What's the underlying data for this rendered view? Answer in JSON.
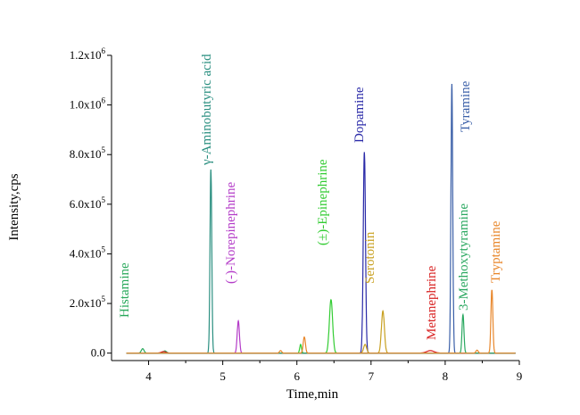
{
  "chart_data": {
    "type": "line",
    "xlabel": "Time,min",
    "ylabel": "Intensity,cps",
    "xlim": [
      3.5,
      9.0
    ],
    "ylim": [
      -30000,
      1200000
    ],
    "x_ticks": [
      4,
      5,
      6,
      7,
      8,
      9
    ],
    "x_tick_labels": [
      "4",
      "5",
      "6",
      "7",
      "8",
      "9"
    ],
    "y_ticks": [
      0,
      200000,
      400000,
      600000,
      800000,
      1000000,
      1200000
    ],
    "y_tick_labels": [
      {
        "mantissa": "0.0",
        "exp": ""
      },
      {
        "mantissa": "2.0x10",
        "exp": "5"
      },
      {
        "mantissa": "4.0x10",
        "exp": "5"
      },
      {
        "mantissa": "6.0x10",
        "exp": "5"
      },
      {
        "mantissa": "8.0x10",
        "exp": "5"
      },
      {
        "mantissa": "1.0x10",
        "exp": "6"
      },
      {
        "mantissa": "1.2x10",
        "exp": "6"
      }
    ],
    "series": [
      {
        "name": "Histamine",
        "color": "#27a85a",
        "peak_x": 3.92,
        "peak_y": 18000,
        "width": 0.018,
        "extra": [
          [
            4.22,
            9000,
            0.02
          ]
        ]
      },
      {
        "name": "γ-Aminobutyric acid",
        "color": "#2a8f80",
        "peak_x": 4.84,
        "peak_y": 740000,
        "width": 0.012,
        "extra": []
      },
      {
        "name": "(-)-Norepinephrine",
        "color": "#b43cc8",
        "peak_x": 5.21,
        "peak_y": 130000,
        "width": 0.015,
        "extra": []
      },
      {
        "name": "(±)-Epinephrine",
        "color": "#33cc33",
        "peak_x": 6.46,
        "peak_y": 215000,
        "width": 0.022,
        "extra": [
          [
            6.05,
            35000,
            0.012
          ]
        ]
      },
      {
        "name": "Dopamine",
        "color": "#2a2aa8",
        "peak_x": 6.91,
        "peak_y": 810000,
        "width": 0.015,
        "extra": []
      },
      {
        "name": "Serotonin",
        "color": "#c8a020",
        "peak_x": 7.16,
        "peak_y": 170000,
        "width": 0.02,
        "extra": [
          [
            6.92,
            35000,
            0.02
          ]
        ]
      },
      {
        "name": "Metanephrine",
        "color": "#d82020",
        "peak_x": 7.8,
        "peak_y": 10000,
        "width": 0.05,
        "extra": [
          [
            4.2,
            6000,
            0.03
          ]
        ]
      },
      {
        "name": "Tyramine",
        "color": "#3a5fa8",
        "peak_x": 8.09,
        "peak_y": 1085000,
        "width": 0.012,
        "extra": []
      },
      {
        "name": "3-Methoxytyramine",
        "color": "#2aa860",
        "peak_x": 8.24,
        "peak_y": 155000,
        "width": 0.013,
        "extra": []
      },
      {
        "name": "Tryptamine",
        "color": "#e8862a",
        "peak_x": 8.63,
        "peak_y": 255000,
        "width": 0.013,
        "extra": [
          [
            6.1,
            65000,
            0.015
          ],
          [
            5.78,
            10000,
            0.015
          ],
          [
            8.43,
            12000,
            0.015
          ]
        ]
      }
    ]
  }
}
